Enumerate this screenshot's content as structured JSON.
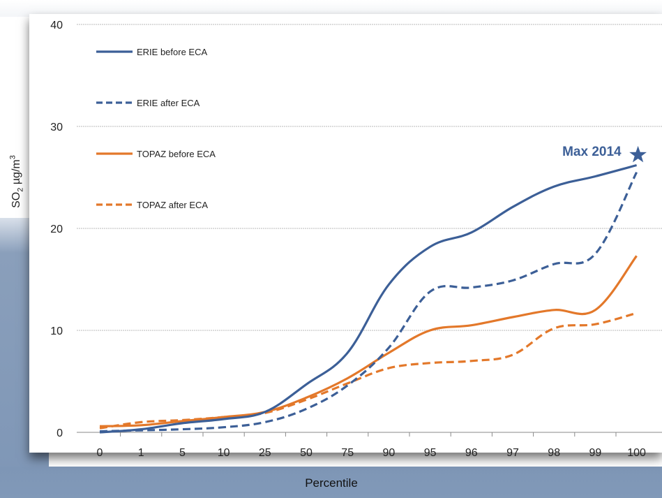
{
  "chart_data": {
    "type": "line",
    "title": "",
    "xlabel": "Percentile",
    "ylabel_main": "SO",
    "ylabel_sub": "2",
    "ylabel_unit": " µg/m",
    "ylabel_sup": "3",
    "categories": [
      "0",
      "1",
      "5",
      "10",
      "25",
      "50",
      "75",
      "90",
      "95",
      "96",
      "97",
      "98",
      "99",
      "100"
    ],
    "ylim": [
      0,
      40
    ],
    "yticks": [
      0,
      10,
      20,
      30,
      40
    ],
    "grid": true,
    "legend_placement": "top-left",
    "series": [
      {
        "name": "ERIE before ECA",
        "color": "#3c5f97",
        "dashed": false,
        "values": [
          0.0,
          0.3,
          0.9,
          1.3,
          2.0,
          4.7,
          7.8,
          14.5,
          18.2,
          19.6,
          22.1,
          24.1,
          25.1,
          26.2
        ]
      },
      {
        "name": "ERIE after ECA",
        "color": "#3c5f97",
        "dashed": true,
        "values": [
          0.1,
          0.2,
          0.3,
          0.5,
          1.0,
          2.3,
          4.6,
          8.3,
          13.8,
          14.2,
          14.9,
          16.5,
          17.5,
          25.5
        ]
      },
      {
        "name": "TOPAZ before ECA",
        "color": "#e3782a",
        "dashed": false,
        "values": [
          0.6,
          0.7,
          1.1,
          1.5,
          2.0,
          3.4,
          5.3,
          7.8,
          10.0,
          10.5,
          11.3,
          12.0,
          12.0,
          17.3
        ]
      },
      {
        "name": "TOPAZ after ECA",
        "color": "#e3782a",
        "dashed": true,
        "values": [
          0.4,
          1.0,
          1.2,
          1.5,
          1.9,
          3.2,
          4.8,
          6.3,
          6.8,
          7.0,
          7.6,
          10.2,
          10.6,
          11.7
        ]
      }
    ],
    "annotation": {
      "text": "Max 2014",
      "color": "#3c5f97",
      "marker": "star-icon",
      "x": "100",
      "y": 27.2
    }
  }
}
